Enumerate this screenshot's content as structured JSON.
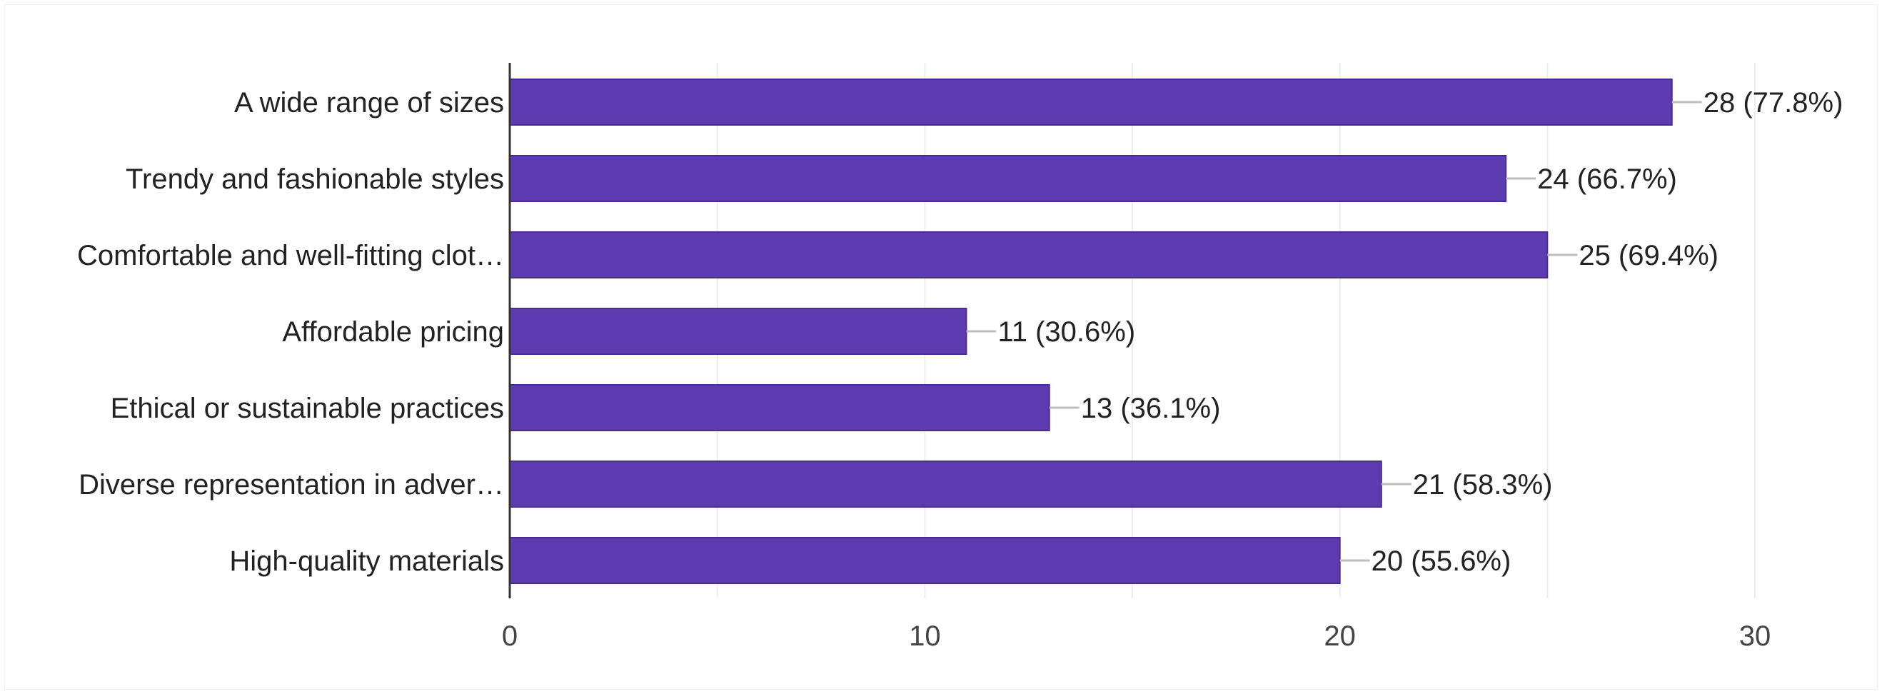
{
  "chart_data": {
    "type": "bar",
    "orientation": "horizontal",
    "categories": [
      "A wide range of sizes",
      "Trendy and fashionable styles",
      "Comfortable and well-fitting clot…",
      "Affordable pricing",
      "Ethical or sustainable practices",
      "Diverse representation in adver…",
      "High-quality materials"
    ],
    "values": [
      28,
      24,
      25,
      11,
      13,
      21,
      20
    ],
    "data_labels": [
      "28 (77.8%)",
      "24 (66.7%)",
      "25 (69.4%)",
      "11 (30.6%)",
      "13 (36.1%)",
      "21 (58.3%)",
      "20 (55.6%)"
    ],
    "xlim": [
      0,
      30
    ],
    "xticks": [
      0,
      10,
      20,
      30
    ],
    "xtick_labels": [
      "0",
      "10",
      "20",
      "30"
    ],
    "title": "",
    "xlabel": "",
    "ylabel": "",
    "grid": true,
    "legend": "none",
    "colors": {
      "bar": "#5e3bb0",
      "bar_edge": "#4a2b94",
      "grid": "#eeeeee",
      "axis": "#333333",
      "leader": "#bdbdbd"
    }
  }
}
